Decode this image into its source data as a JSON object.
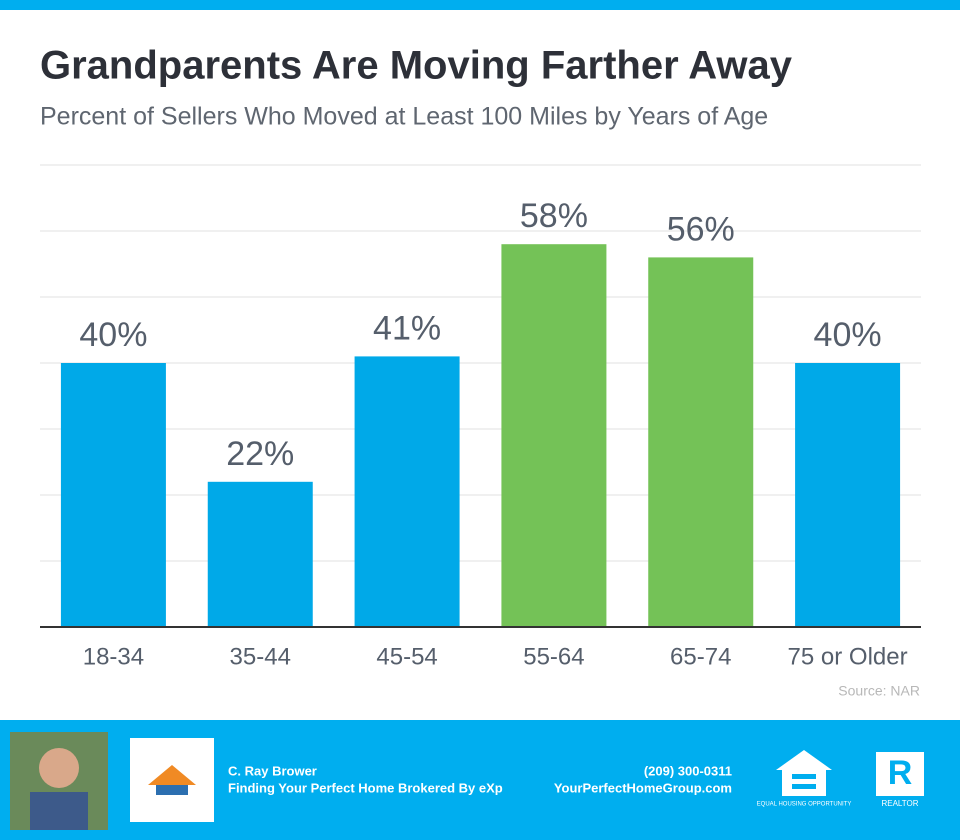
{
  "chart_data": {
    "type": "bar",
    "title": "Grandparents Are Moving Farther Away",
    "subtitle": "Percent of Sellers Who Moved at Least 100 Miles by Years of Age",
    "categories": [
      "18-34",
      "35-44",
      "45-54",
      "55-64",
      "65-74",
      "75 or Older"
    ],
    "values": [
      40,
      22,
      41,
      58,
      56,
      40
    ],
    "value_labels": [
      "40%",
      "22%",
      "41%",
      "58%",
      "56%",
      "40%"
    ],
    "colors": [
      "#00a9e8",
      "#00a9e8",
      "#00a9e8",
      "#74c257",
      "#74c257",
      "#00a9e8"
    ],
    "ylim": [
      0,
      70
    ],
    "yticks": [
      0,
      10,
      20,
      30,
      40,
      50,
      60,
      70
    ],
    "grid": true,
    "source": "Source: NAR"
  },
  "footer": {
    "name": "C. Ray Brower",
    "tagline": "Finding Your Perfect Home Brokered By eXp",
    "phone": "(209) 300-0311",
    "website": "YourPerfectHomeGroup.com",
    "equal_housing": "EQUAL HOUSING OPPORTUNITY",
    "realtor": "REALTOR"
  }
}
